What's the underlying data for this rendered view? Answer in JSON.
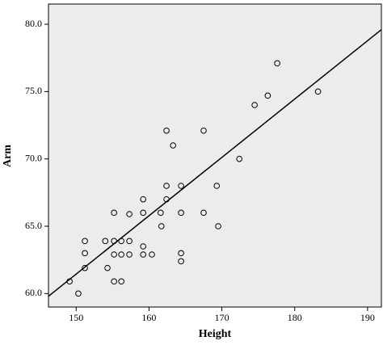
{
  "chart_data": {
    "type": "scatter",
    "x_label": "Height",
    "y_label": "Arm",
    "x": [
      149.1,
      150.3,
      151.2,
      151.2,
      151.2,
      154.0,
      154.3,
      155.2,
      155.2,
      155.2,
      155.2,
      156.2,
      156.2,
      156.2,
      157.3,
      157.3,
      157.3,
      159.2,
      159.2,
      159.2,
      159.2,
      160.4,
      161.6,
      161.7,
      162.4,
      162.4,
      162.4,
      163.3,
      164.4,
      164.4,
      164.4,
      164.4,
      167.5,
      167.5,
      169.3,
      169.5,
      172.4,
      174.5,
      176.3,
      177.6,
      183.2
    ],
    "values": [
      60.9,
      60.0,
      63.9,
      63.0,
      61.9,
      63.9,
      61.9,
      66.0,
      63.9,
      62.9,
      60.9,
      63.9,
      62.9,
      60.9,
      65.9,
      63.9,
      62.9,
      67.0,
      66.0,
      63.5,
      62.9,
      62.9,
      66.0,
      65.0,
      72.1,
      68.0,
      67.0,
      71.0,
      68.0,
      66.0,
      63.0,
      62.4,
      72.1,
      66.0,
      68.0,
      65.0,
      70.0,
      74.0,
      74.7,
      77.1,
      75.0
    ],
    "fit_line": {
      "x": [
        146.2,
        191.9
      ],
      "y": [
        59.8,
        79.6
      ]
    },
    "xlim": [
      146.2,
      191.9
    ],
    "ylim": [
      59.0,
      81.5
    ],
    "xticks": [
      150,
      160,
      170,
      180,
      190
    ],
    "yticks": [
      {
        "value": 60,
        "label": "60.0"
      },
      {
        "value": 65,
        "label": "65.0"
      },
      {
        "value": 70,
        "label": "70.0"
      },
      {
        "value": 75,
        "label": "75.0"
      },
      {
        "value": 80,
        "label": "80.0"
      }
    ],
    "background": "#ececec",
    "color": "#000000"
  }
}
